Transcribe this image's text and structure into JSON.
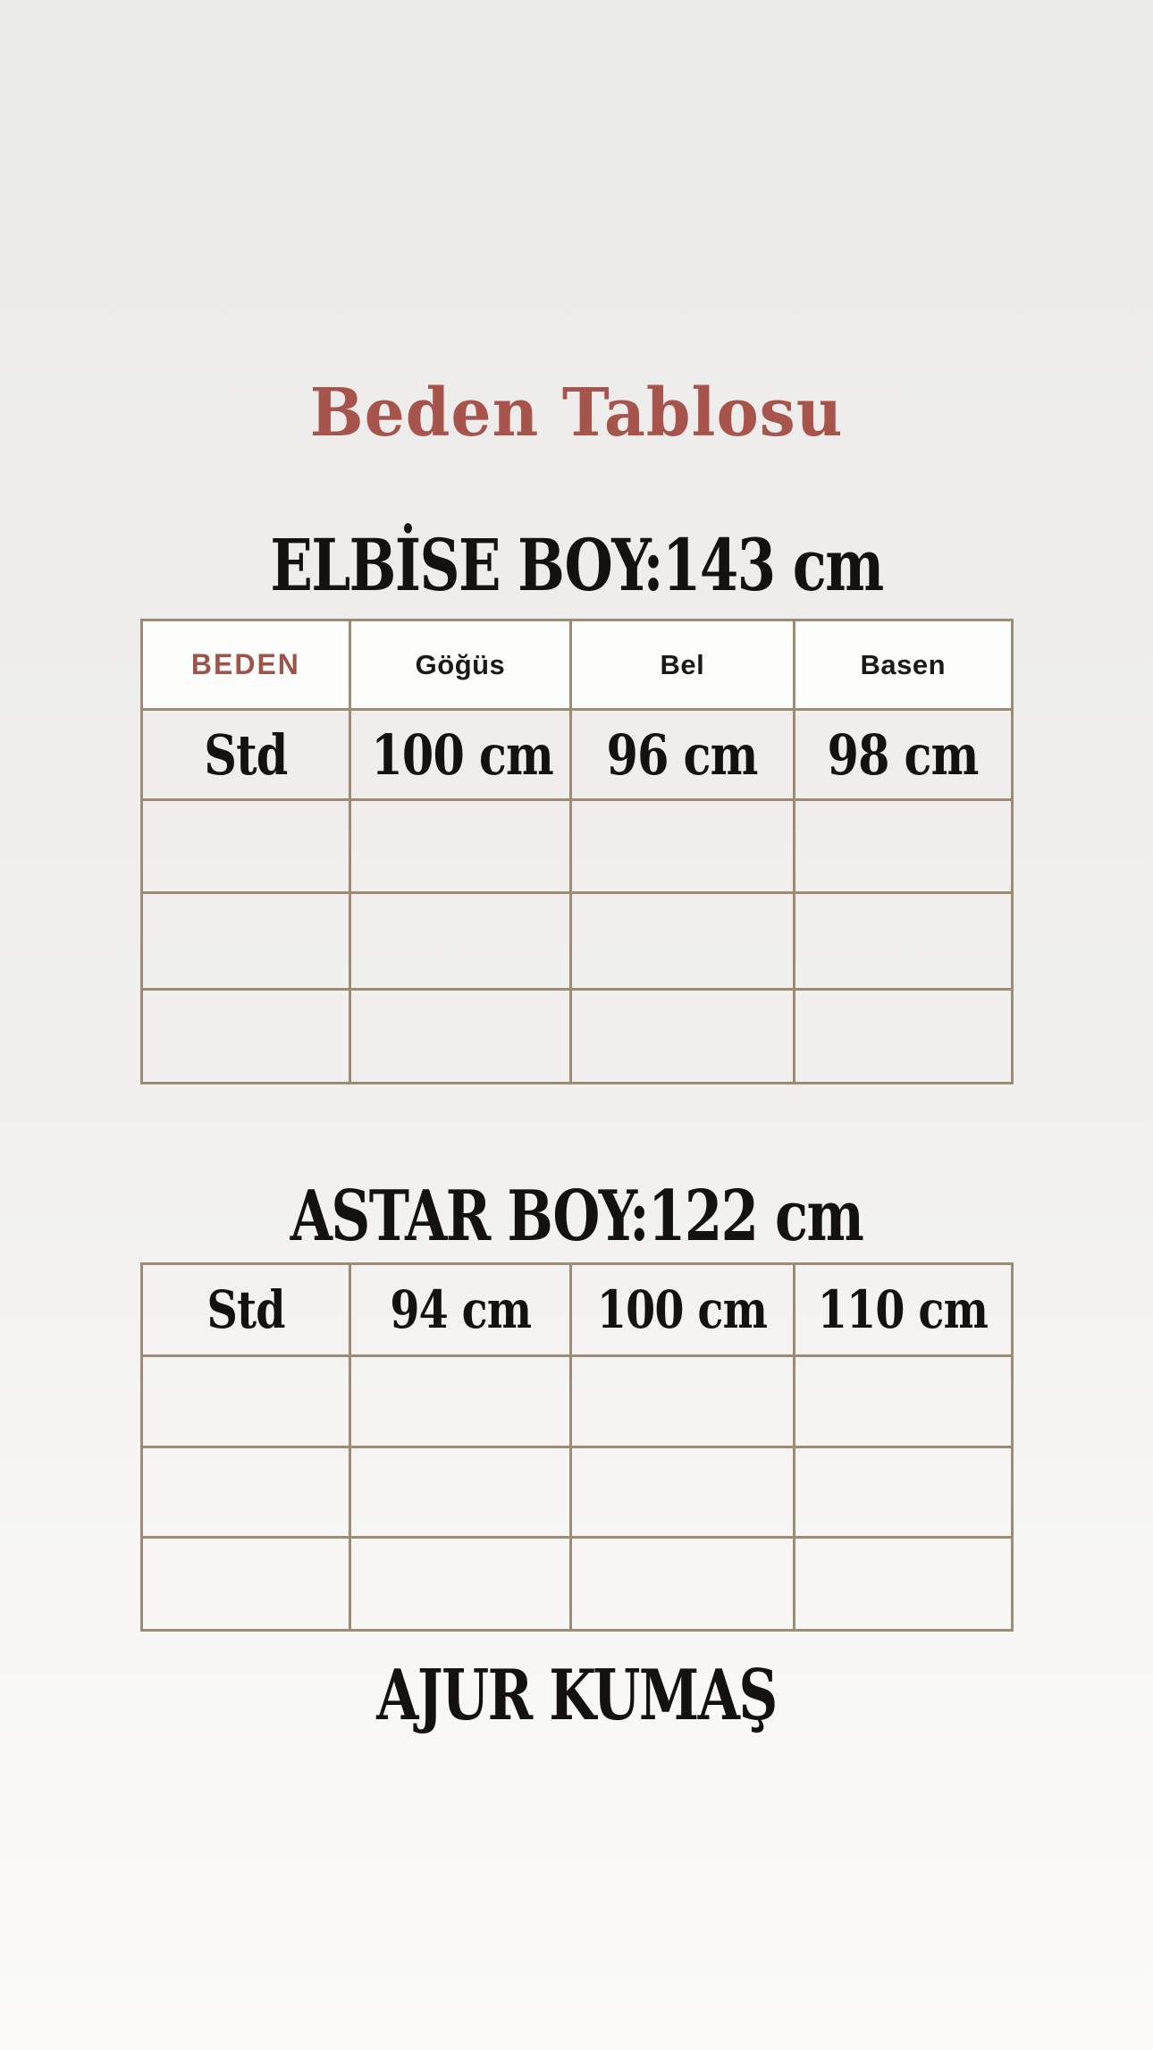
{
  "page": {
    "title": "Beden Tablosu",
    "footer_note": "AJUR KUMAŞ"
  },
  "colors": {
    "background_top": "#ececea",
    "background_bottom": "#fbfaf9",
    "title_color": "#a6544c",
    "beden_header_color": "#9e544b",
    "table_border": "#9c8c73",
    "header_cell_background": "#fdfdfc",
    "text_color": "#141210"
  },
  "sections": [
    {
      "heading": "ELBİSE BOY:143 cm",
      "table": {
        "headers": [
          "BEDEN",
          "Göğüs",
          "Bel",
          "Basen"
        ],
        "rows": [
          [
            "Std",
            "100 cm",
            "96 cm",
            "98 cm"
          ],
          [
            "",
            "",
            "",
            ""
          ],
          [
            "",
            "",
            "",
            ""
          ],
          [
            "",
            "",
            "",
            ""
          ]
        ]
      }
    },
    {
      "heading": "ASTAR BOY:122 cm",
      "table": {
        "headers": [],
        "rows": [
          [
            "Std",
            "94 cm",
            "100 cm",
            "110 cm"
          ],
          [
            "",
            "",
            "",
            ""
          ],
          [
            "",
            "",
            "",
            ""
          ],
          [
            "",
            "",
            "",
            ""
          ]
        ]
      }
    }
  ]
}
